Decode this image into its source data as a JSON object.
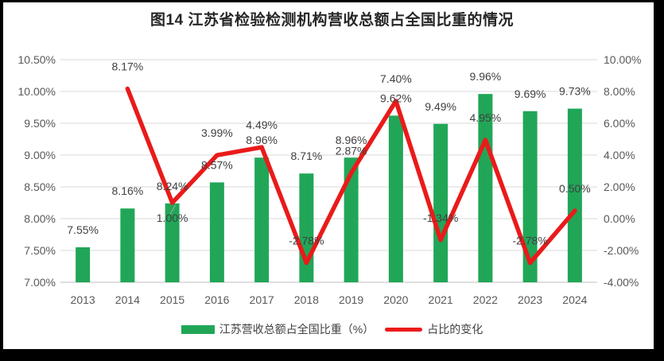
{
  "chart_data": {
    "type": "combo-bar-line",
    "title": "图14 江苏省检验检测机构营收总额占全国比重的情况",
    "categories": [
      "2013",
      "2014",
      "2015",
      "2016",
      "2017",
      "2018",
      "2019",
      "2020",
      "2021",
      "2022",
      "2023",
      "2024"
    ],
    "series": [
      {
        "name": "江苏营收总额占全国比重（%）",
        "type": "bar",
        "axis": "left",
        "values": [
          7.55,
          8.16,
          8.24,
          8.57,
          8.96,
          8.71,
          8.96,
          9.62,
          9.49,
          9.96,
          9.69,
          9.73
        ],
        "labels": [
          "7.55%",
          "8.16%",
          "8.24%",
          "8.57%",
          "8.96%",
          "8.71%",
          "8.96%",
          "9.62%",
          "9.49%",
          "9.96%",
          "9.69%",
          "9.73%"
        ]
      },
      {
        "name": "占比的变化",
        "type": "line",
        "axis": "right",
        "values": [
          null,
          8.17,
          1.0,
          3.99,
          4.49,
          -2.78,
          2.87,
          7.4,
          -1.34,
          4.95,
          -2.78,
          0.5
        ],
        "labels": [
          "",
          "8.17%",
          "1.00%",
          "3.99%",
          "4.49%",
          "-2.78%",
          "2.87%",
          "7.40%",
          "-1.34%",
          "4.95%",
          "-2.78%",
          "0.50%"
        ],
        "label_below": [
          false,
          false,
          true,
          false,
          false,
          false,
          false,
          false,
          false,
          false,
          false,
          false
        ]
      }
    ],
    "left_axis": {
      "min": 7.0,
      "max": 10.5,
      "step": 0.5,
      "ticks": [
        "10.50%",
        "10.00%",
        "9.50%",
        "9.00%",
        "8.50%",
        "8.00%",
        "7.50%",
        "7.00%"
      ]
    },
    "right_axis": {
      "min": -4.0,
      "max": 10.0,
      "step": 2.0,
      "ticks": [
        "10.00%",
        "8.00%",
        "6.00%",
        "4.00%",
        "2.00%",
        "0.00%",
        "-2.00%",
        "-4.00%"
      ]
    },
    "grid": true,
    "legend_position": "bottom"
  },
  "legend": {
    "bar_label": "江苏营收总额占全国比重（%）",
    "line_label": "占比的变化"
  },
  "colors": {
    "bar": "#21a658",
    "line": "#ea1a1a",
    "grid": "#d9d9d9",
    "axis_line": "#bfbfbf",
    "axis_text": "#595959",
    "label_text": "#404040",
    "title_text": "#262626",
    "leader_line": "#a6a6a6"
  }
}
